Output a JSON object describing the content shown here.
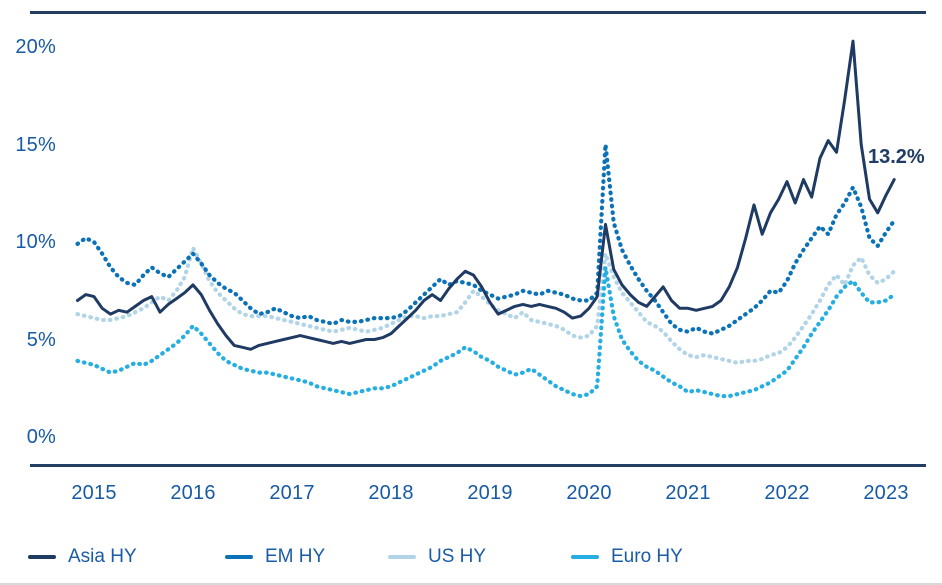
{
  "chart_data": {
    "type": "line",
    "ylim": [
      0,
      20
    ],
    "x_range": [
      2015,
      2023
    ],
    "grid": false,
    "legend_position": "bottom",
    "x_start_year": 2014.8333,
    "interval_months": 1,
    "y_ticks": [
      {
        "label": "20%",
        "value": 20
      },
      {
        "label": "15%",
        "value": 15
      },
      {
        "label": "10%",
        "value": 10
      },
      {
        "label": "5%",
        "value": 5
      },
      {
        "label": "0%",
        "value": 0
      }
    ],
    "x_ticks": [
      {
        "label": "2015",
        "year": 2015
      },
      {
        "label": "2016",
        "year": 2016
      },
      {
        "label": "2017",
        "year": 2017
      },
      {
        "label": "2018",
        "year": 2018
      },
      {
        "label": "2019",
        "year": 2019
      },
      {
        "label": "2020",
        "year": 2020
      },
      {
        "label": "2021",
        "year": 2021
      },
      {
        "label": "2022",
        "year": 2022
      },
      {
        "label": "2023",
        "year": 2023
      }
    ],
    "annotation": {
      "text": "13.2%",
      "series": "Asia HY",
      "x": 2023.08,
      "y": 13.2
    },
    "series": [
      {
        "name": "Asia HY",
        "color": "#1f3b63",
        "style": "solid",
        "values": [
          7.0,
          7.3,
          7.2,
          6.6,
          6.3,
          6.5,
          6.4,
          6.7,
          7.0,
          7.2,
          6.4,
          6.8,
          7.1,
          7.4,
          7.8,
          7.3,
          6.5,
          5.8,
          5.2,
          4.7,
          4.6,
          4.5,
          4.7,
          4.8,
          4.9,
          5.0,
          5.1,
          5.2,
          5.1,
          5.0,
          4.9,
          4.8,
          4.9,
          4.8,
          4.9,
          5.0,
          5.0,
          5.1,
          5.3,
          5.7,
          6.1,
          6.5,
          7.0,
          7.3,
          7.0,
          7.6,
          8.1,
          8.5,
          8.3,
          7.7,
          6.9,
          6.3,
          6.5,
          6.7,
          6.8,
          6.7,
          6.8,
          6.7,
          6.6,
          6.4,
          6.1,
          6.2,
          6.6,
          7.2,
          10.9,
          8.6,
          7.8,
          7.3,
          6.9,
          6.7,
          7.2,
          7.7,
          7.0,
          6.6,
          6.6,
          6.5,
          6.6,
          6.7,
          7.0,
          7.7,
          8.7,
          10.2,
          11.9,
          10.4,
          11.5,
          12.2,
          13.1,
          12.0,
          13.2,
          12.3,
          14.3,
          15.2,
          14.6,
          17.3,
          20.3,
          15.0,
          12.2,
          11.5,
          12.4,
          13.2
        ]
      },
      {
        "name": "EM HY",
        "color": "#0b72b8",
        "style": "dotted",
        "values": [
          9.9,
          10.2,
          10.0,
          9.4,
          8.7,
          8.2,
          7.9,
          7.8,
          8.3,
          8.7,
          8.4,
          8.2,
          8.6,
          9.0,
          9.4,
          8.9,
          8.3,
          7.9,
          7.6,
          7.4,
          7.0,
          6.6,
          6.3,
          6.4,
          6.6,
          6.4,
          6.2,
          6.1,
          6.2,
          6.0,
          5.9,
          5.8,
          6.0,
          5.9,
          5.9,
          6.0,
          6.1,
          6.1,
          6.1,
          6.2,
          6.5,
          6.9,
          7.3,
          7.7,
          8.1,
          7.8,
          8.0,
          7.9,
          7.8,
          7.5,
          7.3,
          7.1,
          7.2,
          7.3,
          7.5,
          7.4,
          7.3,
          7.5,
          7.4,
          7.3,
          7.1,
          7.0,
          7.0,
          7.4,
          15.0,
          11.0,
          9.6,
          8.8,
          8.1,
          7.5,
          7.0,
          6.4,
          5.8,
          5.5,
          5.4,
          5.6,
          5.4,
          5.3,
          5.5,
          5.7,
          6.0,
          6.3,
          6.6,
          7.0,
          7.5,
          7.4,
          8.0,
          8.9,
          9.6,
          10.2,
          10.8,
          10.4,
          11.4,
          12.0,
          12.8,
          11.8,
          10.2,
          9.8,
          10.5,
          11.1
        ]
      },
      {
        "name": "US HY",
        "color": "#b2d4e7",
        "style": "dotted",
        "values": [
          6.3,
          6.2,
          6.1,
          6.0,
          6.0,
          6.1,
          6.2,
          6.4,
          6.6,
          6.9,
          7.2,
          7.0,
          7.5,
          8.2,
          9.7,
          8.9,
          8.0,
          7.4,
          7.0,
          6.6,
          6.3,
          6.2,
          6.2,
          6.2,
          6.1,
          6.0,
          5.9,
          5.8,
          5.7,
          5.6,
          5.5,
          5.4,
          5.5,
          5.6,
          5.5,
          5.4,
          5.5,
          5.6,
          5.8,
          6.0,
          6.2,
          6.2,
          6.1,
          6.2,
          6.2,
          6.3,
          6.4,
          6.9,
          7.5,
          7.2,
          6.8,
          6.5,
          6.3,
          6.1,
          6.4,
          6.0,
          5.9,
          5.8,
          5.7,
          5.5,
          5.2,
          5.1,
          5.2,
          5.7,
          9.4,
          8.2,
          7.4,
          6.9,
          6.4,
          5.9,
          5.7,
          5.4,
          4.9,
          4.5,
          4.2,
          4.1,
          4.2,
          4.1,
          4.0,
          3.9,
          3.8,
          3.9,
          3.9,
          4.0,
          4.2,
          4.3,
          4.6,
          5.1,
          5.7,
          6.3,
          7.0,
          7.8,
          8.3,
          7.8,
          8.8,
          9.2,
          8.3,
          7.9,
          8.1,
          8.5
        ]
      },
      {
        "name": "Euro HY",
        "color": "#26aee3",
        "style": "dotted",
        "values": [
          3.9,
          3.8,
          3.7,
          3.5,
          3.3,
          3.4,
          3.6,
          3.8,
          3.7,
          3.9,
          4.2,
          4.5,
          4.8,
          5.2,
          5.7,
          5.3,
          4.8,
          4.3,
          3.9,
          3.7,
          3.5,
          3.4,
          3.3,
          3.3,
          3.2,
          3.1,
          3.0,
          2.9,
          2.8,
          2.6,
          2.5,
          2.4,
          2.3,
          2.2,
          2.3,
          2.4,
          2.5,
          2.5,
          2.6,
          2.8,
          3.0,
          3.2,
          3.4,
          3.6,
          3.9,
          4.1,
          4.3,
          4.6,
          4.4,
          4.1,
          3.9,
          3.6,
          3.4,
          3.2,
          3.3,
          3.5,
          3.2,
          2.9,
          2.6,
          2.4,
          2.2,
          2.1,
          2.2,
          2.6,
          8.7,
          6.2,
          5.0,
          4.4,
          3.9,
          3.6,
          3.4,
          3.1,
          2.8,
          2.6,
          2.3,
          2.4,
          2.3,
          2.2,
          2.1,
          2.1,
          2.2,
          2.3,
          2.4,
          2.6,
          2.8,
          3.1,
          3.4,
          4.0,
          4.6,
          5.3,
          5.9,
          6.5,
          7.2,
          7.7,
          8.0,
          7.4,
          6.9,
          6.9,
          7.0,
          7.3
        ]
      }
    ]
  }
}
